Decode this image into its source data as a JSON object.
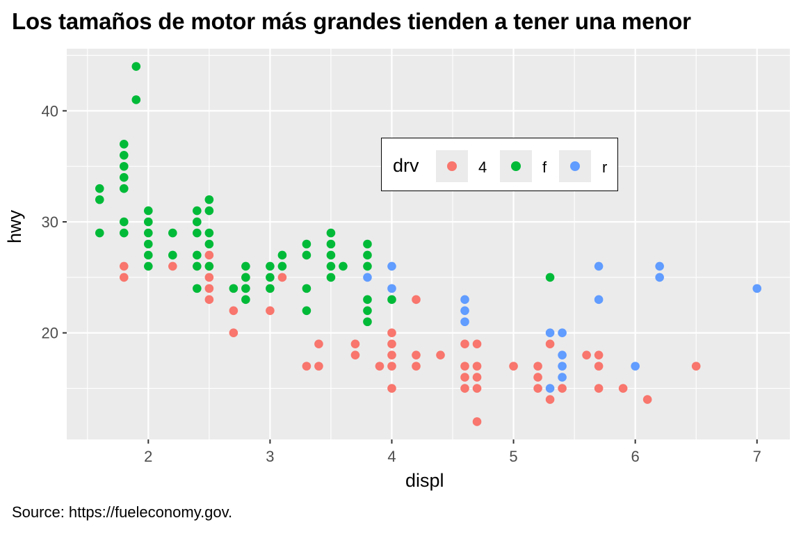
{
  "title": "Los tamaños de motor más grandes tienden a tener una menor",
  "caption": "Source: https://fueleconomy.gov.",
  "axes": {
    "xlabel": "displ",
    "ylabel": "hwy",
    "xticks": [
      "2",
      "3",
      "4",
      "5",
      "6",
      "7"
    ],
    "yticks": [
      "20",
      "30",
      "40"
    ]
  },
  "legend": {
    "title": "drv",
    "items": [
      {
        "label": "4",
        "color": "#F8766D"
      },
      {
        "label": "f",
        "color": "#00BA38"
      },
      {
        "label": "r",
        "color": "#619CFF"
      }
    ]
  },
  "chart_data": {
    "type": "scatter",
    "title": "Los tamaños de motor más grandes tienden a tener una menor",
    "caption": "Source: https://fueleconomy.gov.",
    "xlabel": "displ",
    "ylabel": "hwy",
    "xlim": [
      1.33,
      7.27
    ],
    "ylim": [
      10.4,
      45.6
    ],
    "xticks": [
      2,
      3,
      4,
      5,
      6,
      7
    ],
    "yticks": [
      20,
      30,
      40
    ],
    "grid": true,
    "legend_position": "inside-top-center",
    "legend_title": "drv",
    "series": [
      {
        "name": "4",
        "color": "#F8766D",
        "points": [
          [
            1.8,
            26
          ],
          [
            1.8,
            25
          ],
          [
            2.2,
            26
          ],
          [
            2.5,
            27
          ],
          [
            2.5,
            26
          ],
          [
            2.5,
            25
          ],
          [
            2.5,
            24
          ],
          [
            2.5,
            23
          ],
          [
            2.7,
            22
          ],
          [
            2.7,
            20
          ],
          [
            2.8,
            25
          ],
          [
            3.0,
            22
          ],
          [
            3.1,
            25
          ],
          [
            3.3,
            17
          ],
          [
            3.4,
            19
          ],
          [
            3.4,
            17
          ],
          [
            3.7,
            19
          ],
          [
            3.7,
            18
          ],
          [
            3.9,
            17
          ],
          [
            4.0,
            20
          ],
          [
            4.0,
            19
          ],
          [
            4.0,
            18
          ],
          [
            4.0,
            17
          ],
          [
            4.0,
            15
          ],
          [
            4.2,
            23
          ],
          [
            4.2,
            18
          ],
          [
            4.2,
            17
          ],
          [
            4.4,
            18
          ],
          [
            4.6,
            19
          ],
          [
            4.6,
            17
          ],
          [
            4.6,
            16
          ],
          [
            4.6,
            15
          ],
          [
            4.7,
            19
          ],
          [
            4.7,
            17
          ],
          [
            4.7,
            16
          ],
          [
            4.7,
            15
          ],
          [
            4.7,
            12
          ],
          [
            5.0,
            17
          ],
          [
            5.2,
            17
          ],
          [
            5.2,
            16
          ],
          [
            5.2,
            15
          ],
          [
            5.3,
            19
          ],
          [
            5.3,
            14
          ],
          [
            5.4,
            15
          ],
          [
            5.6,
            18
          ],
          [
            5.7,
            18
          ],
          [
            5.7,
            17
          ],
          [
            5.7,
            15
          ],
          [
            5.9,
            15
          ],
          [
            6.1,
            14
          ],
          [
            6.5,
            17
          ]
        ]
      },
      {
        "name": "f",
        "color": "#00BA38",
        "points": [
          [
            1.6,
            33
          ],
          [
            1.6,
            32
          ],
          [
            1.6,
            29
          ],
          [
            1.8,
            37
          ],
          [
            1.8,
            36
          ],
          [
            1.8,
            35
          ],
          [
            1.8,
            34
          ],
          [
            1.8,
            33
          ],
          [
            1.8,
            30
          ],
          [
            1.8,
            29
          ],
          [
            1.9,
            44
          ],
          [
            1.9,
            41
          ],
          [
            2.0,
            31
          ],
          [
            2.0,
            30
          ],
          [
            2.0,
            29
          ],
          [
            2.0,
            28
          ],
          [
            2.0,
            27
          ],
          [
            2.0,
            26
          ],
          [
            2.2,
            29
          ],
          [
            2.2,
            27
          ],
          [
            2.4,
            31
          ],
          [
            2.4,
            30
          ],
          [
            2.4,
            29
          ],
          [
            2.4,
            27
          ],
          [
            2.4,
            26
          ],
          [
            2.4,
            24
          ],
          [
            2.5,
            32
          ],
          [
            2.5,
            31
          ],
          [
            2.5,
            29
          ],
          [
            2.5,
            28
          ],
          [
            2.5,
            26
          ],
          [
            2.7,
            24
          ],
          [
            2.8,
            26
          ],
          [
            2.8,
            25
          ],
          [
            2.8,
            24
          ],
          [
            2.8,
            23
          ],
          [
            3.0,
            26
          ],
          [
            3.0,
            25
          ],
          [
            3.0,
            24
          ],
          [
            3.1,
            27
          ],
          [
            3.1,
            26
          ],
          [
            3.3,
            28
          ],
          [
            3.3,
            27
          ],
          [
            3.3,
            24
          ],
          [
            3.3,
            22
          ],
          [
            3.5,
            29
          ],
          [
            3.5,
            28
          ],
          [
            3.5,
            27
          ],
          [
            3.5,
            26
          ],
          [
            3.5,
            25
          ],
          [
            3.6,
            26
          ],
          [
            3.8,
            28
          ],
          [
            3.8,
            27
          ],
          [
            3.8,
            26
          ],
          [
            3.8,
            23
          ],
          [
            3.8,
            22
          ],
          [
            3.8,
            21
          ],
          [
            4.0,
            23
          ],
          [
            5.3,
            25
          ]
        ]
      },
      {
        "name": "r",
        "color": "#619CFF",
        "points": [
          [
            3.8,
            25
          ],
          [
            4.0,
            26
          ],
          [
            4.0,
            24
          ],
          [
            4.6,
            23
          ],
          [
            4.6,
            22
          ],
          [
            4.6,
            21
          ],
          [
            5.3,
            20
          ],
          [
            5.3,
            15
          ],
          [
            5.4,
            20
          ],
          [
            5.4,
            18
          ],
          [
            5.4,
            17
          ],
          [
            5.4,
            16
          ],
          [
            5.7,
            26
          ],
          [
            5.7,
            23
          ],
          [
            6.0,
            17
          ],
          [
            6.2,
            26
          ],
          [
            6.2,
            25
          ],
          [
            7.0,
            24
          ]
        ]
      }
    ]
  }
}
